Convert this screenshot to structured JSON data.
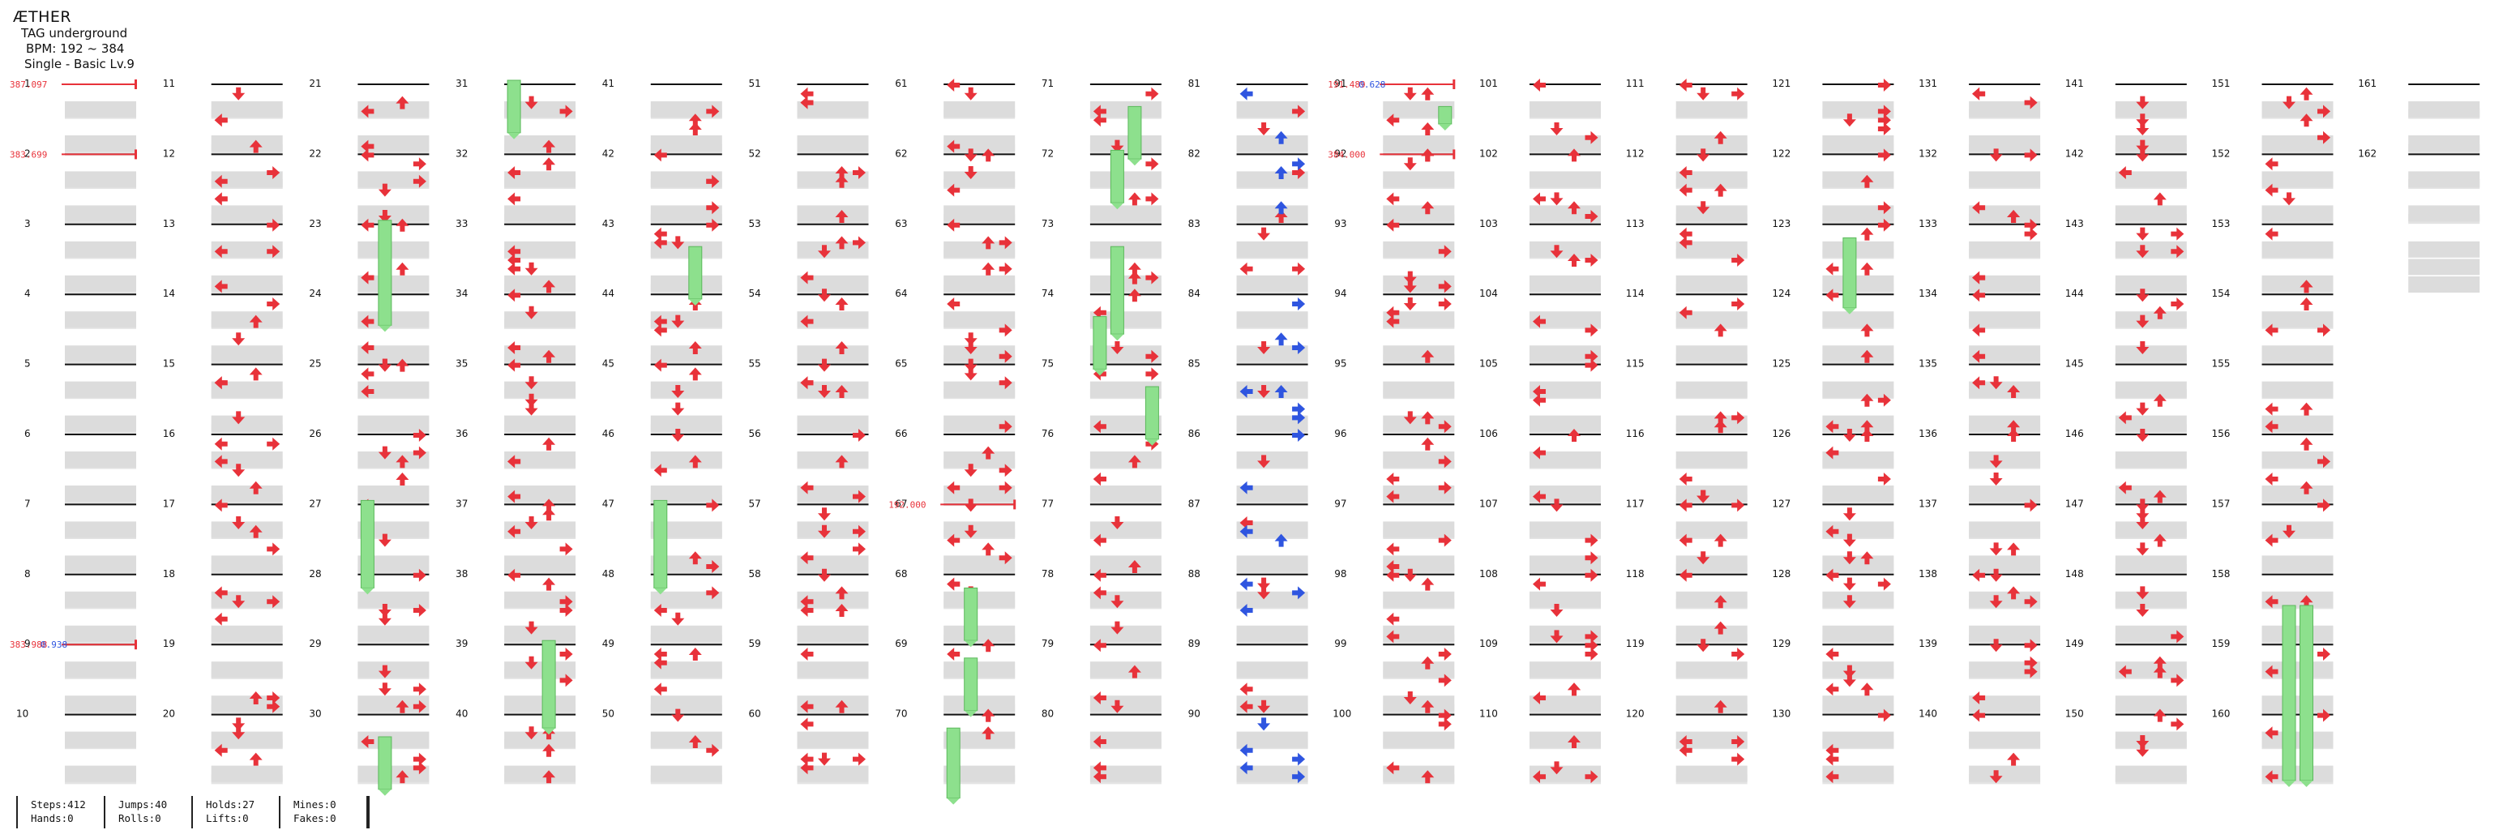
{
  "header": {
    "title": "ÆTHER",
    "artist": "TAG underground",
    "bpm": "BPM: 192 ~ 384",
    "difficulty": "Single - Basic Lv.9"
  },
  "chart_data": {
    "type": "step-chart",
    "measures_per_column": 10,
    "total_measures": 162,
    "bpm_changes": [
      {
        "measure": 1,
        "label": "387.097"
      },
      {
        "measure": 2,
        "label": "383.699"
      },
      {
        "measure": 9,
        "label": "383.988",
        "extra": "0.938"
      },
      {
        "measure": 67,
        "label": "192.000"
      },
      {
        "measure": 91,
        "label": "191.489",
        "extra": "0.628"
      },
      {
        "measure": 92,
        "label": "384.000"
      }
    ],
    "note_colors": {
      "red": "#e8323a",
      "blue": "#2f55e0",
      "hold": "#8de08d"
    }
  },
  "stats": {
    "steps": "Steps:412",
    "hands": "Hands:0",
    "jumps": "Jumps:40",
    "rolls": "Rolls:0",
    "holds": "Holds:27",
    "lifts": "Lifts:0",
    "mines": "Mines:0",
    "fakes": "Fakes:0"
  }
}
